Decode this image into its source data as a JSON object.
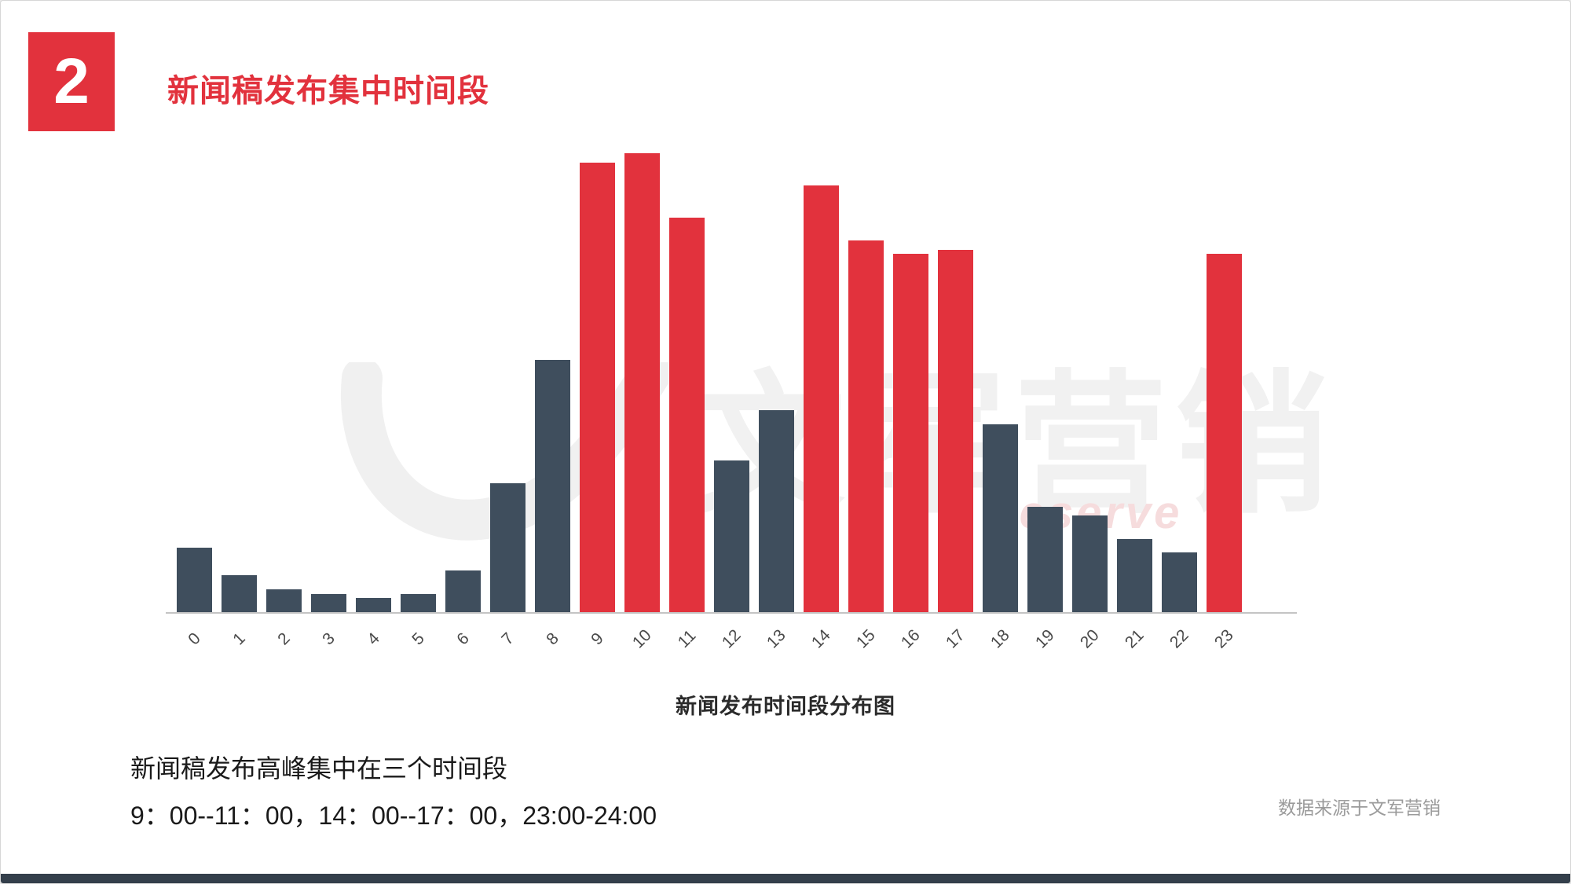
{
  "page": {
    "badge": "2",
    "title": "新闻稿发布集中时间段",
    "note_line1": "新闻稿发布高峰集中在三个时间段",
    "note_line2": "9：00--11：00，14：00--17：00，23:00-24:00",
    "source": "数据来源于文军营销",
    "watermark": "文军营销",
    "watermark_sub": "reserve"
  },
  "colors": {
    "accent_red": "#e2323d",
    "bar_normal": "#3f4e5d",
    "bar_highlight": "#e2323d",
    "footer_strip": "#343f4b",
    "axis": "#c4c4c4"
  },
  "chart_data": {
    "type": "bar",
    "title": "新闻发布时间段分布图",
    "categories": [
      "0",
      "1",
      "2",
      "3",
      "4",
      "5",
      "6",
      "7",
      "8",
      "9",
      "10",
      "11",
      "12",
      "13",
      "14",
      "15",
      "16",
      "17",
      "18",
      "19",
      "20",
      "21",
      "22",
      "23"
    ],
    "values": [
      14,
      8,
      5,
      4,
      3,
      4,
      9,
      28,
      55,
      98,
      100,
      86,
      33,
      44,
      93,
      81,
      78,
      79,
      41,
      23,
      21,
      16,
      13,
      78
    ],
    "highlight_categories": [
      "9",
      "10",
      "11",
      "14",
      "15",
      "16",
      "17",
      "23"
    ],
    "xlabel": "",
    "ylabel": "",
    "ylim": [
      0,
      100
    ],
    "grid": false,
    "legend": "none"
  }
}
